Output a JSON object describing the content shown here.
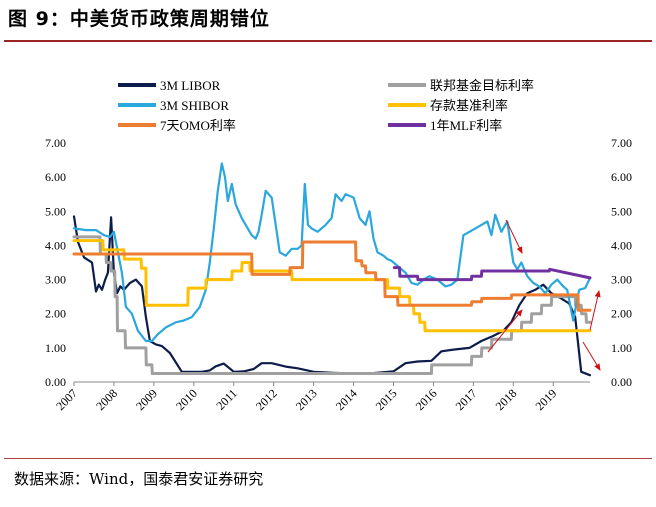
{
  "figure": {
    "title": "图 9：中美货币政策周期错位",
    "source": "数据来源：Wind，国泰君安证券研究"
  },
  "chart_data": {
    "type": "line",
    "title": "",
    "xlabel": "",
    "ylabel": "",
    "xlim": [
      2007.0,
      2019.92
    ],
    "ylim": [
      0,
      7
    ],
    "y_ticks": [
      "0.00",
      "1.00",
      "2.00",
      "3.00",
      "4.00",
      "5.00",
      "6.00",
      "7.00"
    ],
    "y_ticks_right": [
      "0.00",
      "1.00",
      "2.00",
      "3.00",
      "4.00",
      "5.00",
      "6.00",
      "7.00"
    ],
    "x_ticks": [
      "2007",
      "2008",
      "2009",
      "2010",
      "2011",
      "2012",
      "2013",
      "2014",
      "2015",
      "2016",
      "2017",
      "2018",
      "2019"
    ],
    "grid": false,
    "legend_position": "top",
    "series": [
      {
        "name": "3M LIBOR",
        "color": "#0d1d4b",
        "width": 2.2,
        "x": [
          2007.0,
          2007.1,
          2007.25,
          2007.45,
          2007.55,
          2007.62,
          2007.7,
          2007.78,
          2007.85,
          2007.93,
          2008.0,
          2008.08,
          2008.16,
          2008.25,
          2008.4,
          2008.55,
          2008.7,
          2008.8,
          2008.9,
          2009.05,
          2009.2,
          2009.4,
          2009.7,
          2010.2,
          2010.4,
          2010.55,
          2010.75,
          2011.0,
          2011.25,
          2011.5,
          2011.7,
          2011.95,
          2012.3,
          2012.6,
          2013.0,
          2013.5,
          2014.0,
          2014.5,
          2015.0,
          2015.3,
          2015.6,
          2015.95,
          2016.2,
          2016.5,
          2016.9,
          2017.2,
          2017.5,
          2017.75,
          2017.95,
          2018.15,
          2018.35,
          2018.55,
          2018.75,
          2018.95,
          2019.2,
          2019.4,
          2019.55,
          2019.7,
          2019.92
        ],
        "y": [
          4.85,
          4.1,
          3.65,
          3.5,
          2.65,
          2.85,
          2.7,
          3.0,
          3.2,
          4.82,
          3.2,
          2.6,
          2.8,
          2.7,
          2.9,
          3.0,
          2.8,
          1.9,
          1.2,
          1.1,
          1.05,
          0.85,
          0.3,
          0.3,
          0.34,
          0.46,
          0.54,
          0.3,
          0.31,
          0.38,
          0.55,
          0.55,
          0.45,
          0.4,
          0.3,
          0.27,
          0.25,
          0.26,
          0.31,
          0.55,
          0.6,
          0.62,
          0.9,
          0.95,
          1.0,
          1.2,
          1.35,
          1.5,
          1.75,
          2.25,
          2.6,
          2.7,
          2.85,
          2.6,
          2.45,
          2.3,
          1.9,
          0.3,
          0.2
        ]
      },
      {
        "name": "联邦基金目标利率",
        "color": "#a0a0a0",
        "width": 3,
        "x": [
          2007.0,
          2007.65,
          2007.66,
          2007.8,
          2007.81,
          2007.92,
          2007.93,
          2008.02,
          2008.03,
          2008.08,
          2008.09,
          2008.28,
          2008.29,
          2008.8,
          2008.81,
          2008.95,
          2008.96,
          2015.95,
          2015.96,
          2016.95,
          2016.96,
          2017.2,
          2017.21,
          2017.45,
          2017.46,
          2017.95,
          2017.96,
          2018.2,
          2018.21,
          2018.45,
          2018.46,
          2018.7,
          2018.71,
          2018.95,
          2018.96,
          2019.55,
          2019.56,
          2019.7,
          2019.71,
          2019.82,
          2019.83,
          2019.92
        ],
        "y": [
          4.25,
          4.25,
          3.75,
          3.75,
          3.5,
          3.5,
          3.25,
          3.25,
          2.5,
          2.5,
          1.5,
          1.5,
          1.0,
          1.0,
          0.5,
          0.5,
          0.25,
          0.25,
          0.5,
          0.5,
          0.75,
          0.75,
          1.0,
          1.0,
          1.25,
          1.25,
          1.5,
          1.5,
          1.75,
          1.75,
          2.0,
          2.0,
          2.25,
          2.25,
          2.5,
          2.5,
          2.25,
          2.25,
          2.0,
          2.0,
          1.75,
          1.75
        ]
      },
      {
        "name": "3M SHIBOR",
        "color": "#2aa7dc",
        "width": 2.2,
        "x": [
          2007.0,
          2007.3,
          2007.55,
          2007.75,
          2007.9,
          2008.0,
          2008.1,
          2008.2,
          2008.3,
          2008.45,
          2008.6,
          2008.8,
          2008.95,
          2009.1,
          2009.3,
          2009.55,
          2009.75,
          2009.95,
          2010.15,
          2010.3,
          2010.4,
          2010.5,
          2010.6,
          2010.7,
          2010.78,
          2010.85,
          2010.95,
          2011.05,
          2011.2,
          2011.3,
          2011.45,
          2011.55,
          2011.62,
          2011.7,
          2011.8,
          2011.95,
          2012.0,
          2012.05,
          2012.15,
          2012.3,
          2012.45,
          2012.6,
          2012.7,
          2012.78,
          2012.86,
          2012.95,
          2013.1,
          2013.3,
          2013.45,
          2013.55,
          2013.62,
          2013.7,
          2013.8,
          2013.9,
          2014.0,
          2014.15,
          2014.3,
          2014.4,
          2014.5,
          2014.6,
          2014.75,
          2014.85,
          2014.95,
          2015.1,
          2015.3,
          2015.45,
          2015.6,
          2015.75,
          2015.9,
          2016.1,
          2016.3,
          2016.45,
          2016.6,
          2016.75,
          2016.9,
          2017.05,
          2017.2,
          2017.35,
          2017.45,
          2017.55,
          2017.7,
          2017.85,
          2018.0,
          2018.1,
          2018.2,
          2018.35,
          2018.5,
          2018.65,
          2018.8,
          2018.95,
          2019.1,
          2019.25,
          2019.35,
          2019.5,
          2019.65,
          2019.8,
          2019.92
        ],
        "y": [
          4.5,
          4.45,
          4.45,
          4.3,
          4.25,
          4.4,
          3.8,
          3.2,
          2.2,
          2.0,
          1.5,
          1.2,
          1.2,
          1.4,
          1.6,
          1.75,
          1.8,
          1.9,
          2.2,
          2.7,
          3.5,
          4.5,
          5.6,
          6.4,
          6.0,
          5.3,
          5.8,
          5.2,
          4.8,
          4.6,
          4.3,
          4.2,
          4.4,
          4.9,
          5.6,
          5.4,
          5.0,
          4.6,
          3.8,
          3.7,
          3.9,
          3.9,
          4.0,
          5.8,
          4.6,
          4.5,
          4.4,
          4.6,
          4.8,
          5.5,
          5.4,
          5.3,
          5.5,
          5.45,
          5.4,
          4.8,
          4.6,
          5.0,
          4.2,
          3.8,
          3.7,
          3.6,
          3.55,
          3.4,
          3.2,
          2.9,
          2.85,
          3.0,
          3.1,
          3.0,
          2.8,
          2.85,
          3.0,
          4.3,
          4.4,
          4.5,
          4.6,
          4.7,
          4.3,
          4.9,
          4.4,
          4.7,
          3.5,
          3.3,
          3.5,
          3.1,
          2.9,
          2.8,
          2.6,
          2.85,
          3.0,
          2.8,
          2.7,
          1.8,
          2.7,
          2.75,
          3.05
        ]
      },
      {
        "name": "存款基准利率",
        "color": "#ffc000",
        "width": 3,
        "x": [
          2007.0,
          2007.72,
          2007.73,
          2008.25,
          2008.26,
          2008.68,
          2008.69,
          2008.8,
          2008.81,
          2008.95,
          2008.96,
          2009.85,
          2009.86,
          2010.3,
          2010.31,
          2010.95,
          2010.96,
          2011.2,
          2011.21,
          2011.4,
          2011.41,
          2012.45,
          2012.46,
          2012.55,
          2012.56,
          2014.85,
          2014.86,
          2015.15,
          2015.16,
          2015.4,
          2015.41,
          2015.5,
          2015.51,
          2015.65,
          2015.66,
          2015.78,
          2015.79,
          2019.92
        ],
        "y": [
          4.14,
          4.14,
          3.87,
          3.87,
          3.6,
          3.6,
          3.33,
          3.33,
          2.25,
          2.25,
          2.25,
          2.25,
          2.75,
          2.75,
          3.0,
          3.0,
          3.25,
          3.25,
          3.5,
          3.5,
          3.25,
          3.25,
          3.0,
          3.0,
          3.0,
          3.0,
          2.75,
          2.75,
          2.5,
          2.5,
          2.25,
          2.25,
          2.0,
          2.0,
          1.75,
          1.75,
          1.5,
          1.5
        ]
      },
      {
        "name": "7天OMO利率",
        "color": "#ed7d31",
        "width": 3,
        "x": [
          2007.0,
          2011.45,
          2011.46,
          2012.4,
          2012.41,
          2012.55,
          2012.56,
          2012.72,
          2012.73,
          2014.05,
          2014.06,
          2014.2,
          2014.21,
          2014.3,
          2014.31,
          2014.55,
          2014.56,
          2014.78,
          2014.79,
          2015.1,
          2015.11,
          2015.6,
          2015.61,
          2016.95,
          2016.96,
          2017.2,
          2017.21,
          2017.95,
          2017.96,
          2019.62,
          2019.63,
          2019.92
        ],
        "y": [
          3.75,
          3.75,
          3.15,
          3.15,
          3.35,
          3.35,
          3.35,
          3.35,
          4.1,
          4.1,
          3.55,
          3.55,
          3.4,
          3.4,
          3.2,
          3.2,
          3.0,
          3.0,
          2.5,
          2.5,
          2.25,
          2.25,
          2.25,
          2.25,
          2.35,
          2.35,
          2.45,
          2.45,
          2.55,
          2.55,
          2.1,
          2.1
        ]
      },
      {
        "name": "1年MLF利率",
        "color": "#7030a0",
        "width": 3,
        "x": [
          2015.02,
          2015.15,
          2015.16,
          2015.6,
          2015.61,
          2016.95,
          2016.96,
          2017.2,
          2017.21,
          2018.9,
          2018.91,
          2019.92
        ],
        "y": [
          3.35,
          3.35,
          3.1,
          3.1,
          3.0,
          3.0,
          3.1,
          3.1,
          3.25,
          3.25,
          3.3,
          3.05
        ]
      }
    ]
  }
}
